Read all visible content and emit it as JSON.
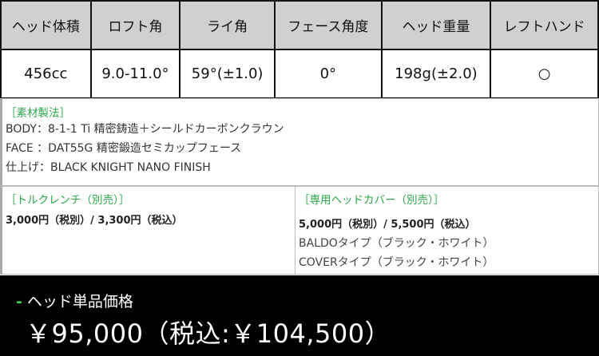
{
  "spec": {
    "headers": [
      "ヘッド体積",
      "ロフト角",
      "ライ角",
      "フェース角度",
      "ヘッド重量",
      "レフトハンド"
    ],
    "values": [
      "456cc",
      "9.0-11.0°",
      "59°(±1.0)",
      "0°",
      "198g(±2.0)",
      "○"
    ]
  },
  "material": {
    "title": "［素材製法］",
    "lines": [
      "BODY：8-1-1 Ti 精密鋳造＋シールドカーボンクラウン",
      "FACE ：DAT55G 精密鍛造セミカップフェース",
      "仕上げ：BLACK KNIGHT NANO FINISH"
    ]
  },
  "wrench": {
    "title": "［トルクレンチ（別売）］",
    "price": "3,000円（税別）/ 3,300円（税込）"
  },
  "cover": {
    "title": "［専用ヘッドカバー（別売）］",
    "price": "5,000円（税別）/ 5,500円（税込）",
    "types": [
      "BALDOタイプ（ブラック・ホワイト）",
      "COVERタイプ（ブラック・ホワイト）"
    ]
  },
  "head_price": {
    "marker": "-",
    "title": "ヘッド単品価格",
    "value": "￥95,000（税込:￥104,500）"
  },
  "colors": {
    "accent": "#2aa84a",
    "header_bg": "#d0d0d0",
    "price_bg": "#000000"
  }
}
